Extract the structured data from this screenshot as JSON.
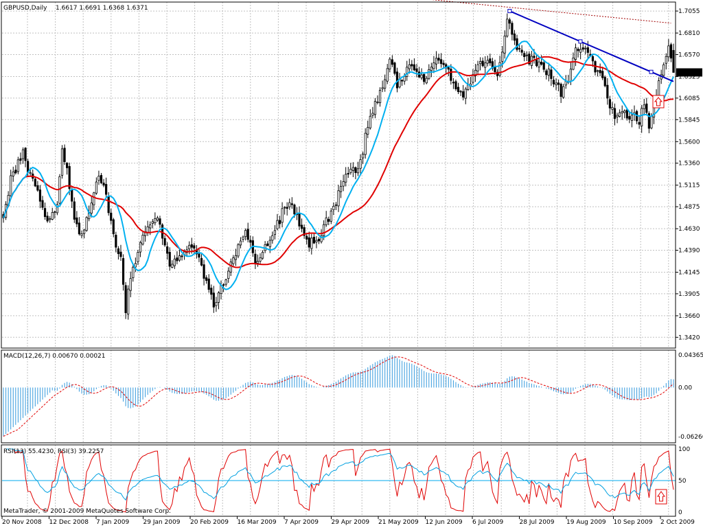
{
  "header": {
    "symbol_label": "GBPUSD,Daily",
    "ohlc": "1.6617 1.6691 1.6368 1.6371"
  },
  "colors": {
    "background": "#ffffff",
    "grid": "#c0c0c0",
    "candle": "#000000",
    "ma_fast": "#00b0f0",
    "ma_slow": "#e00000",
    "ma_long": "#a00000",
    "trendline": "#0000c0",
    "macd_hist": "#3399dd",
    "macd_signal": "#e00000",
    "rsi13": "#00a0e0",
    "rsi3": "#e00000",
    "level": "#00aaee",
    "arrow": "#e00000",
    "last_price_bg": "#000000"
  },
  "chart_data": [
    {
      "type": "candlestick",
      "title": "GBPUSD,Daily",
      "ohlc_header": "1.6617 1.6691 1.6368 1.6371",
      "ylim": [
        1.33,
        1.7155
      ],
      "y_ticks": [
        "1.7055",
        "1.6810",
        "1.6570",
        "1.6325",
        "1.6085",
        "1.5845",
        "1.5600",
        "1.5360",
        "1.5115",
        "1.4875",
        "1.4630",
        "1.4390",
        "1.4145",
        "1.3905",
        "1.3660",
        "1.3420"
      ],
      "last_price": "1.6371",
      "x_ticks": [
        "20 Nov 2008",
        "12 Dec 2008",
        "7 Jan 2009",
        "29 Jan 2009",
        "20 Feb 2009",
        "16 Mar 2009",
        "7 Apr 2009",
        "29 Apr 2009",
        "21 May 2009",
        "12 Jun 2009",
        "6 Jul 2009",
        "28 Jul 2009",
        "19 Aug 2009",
        "10 Sep 2009",
        "2 Oct 2009"
      ],
      "close_anchors": [
        [
          0,
          1.475
        ],
        [
          3,
          1.52
        ],
        [
          8,
          1.545
        ],
        [
          14,
          1.505
        ],
        [
          18,
          1.47
        ],
        [
          22,
          1.49
        ],
        [
          24,
          1.555
        ],
        [
          26,
          1.525
        ],
        [
          28,
          1.49
        ],
        [
          31,
          1.455
        ],
        [
          34,
          1.47
        ],
        [
          36,
          1.49
        ],
        [
          39,
          1.525
        ],
        [
          41,
          1.51
        ],
        [
          45,
          1.455
        ],
        [
          48,
          1.43
        ],
        [
          50,
          1.375
        ],
        [
          52,
          1.41
        ],
        [
          55,
          1.44
        ],
        [
          58,
          1.455
        ],
        [
          62,
          1.48
        ],
        [
          65,
          1.455
        ],
        [
          68,
          1.42
        ],
        [
          72,
          1.43
        ],
        [
          75,
          1.445
        ],
        [
          80,
          1.43
        ],
        [
          83,
          1.405
        ],
        [
          86,
          1.375
        ],
        [
          89,
          1.4
        ],
        [
          93,
          1.42
        ],
        [
          96,
          1.445
        ],
        [
          99,
          1.46
        ],
        [
          103,
          1.425
        ],
        [
          106,
          1.44
        ],
        [
          110,
          1.455
        ],
        [
          114,
          1.48
        ],
        [
          118,
          1.495
        ],
        [
          121,
          1.465
        ],
        [
          124,
          1.45
        ],
        [
          127,
          1.445
        ],
        [
          130,
          1.46
        ],
        [
          134,
          1.48
        ],
        [
          138,
          1.51
        ],
        [
          142,
          1.53
        ],
        [
          145,
          1.525
        ],
        [
          148,
          1.565
        ],
        [
          150,
          1.585
        ],
        [
          152,
          1.6
        ],
        [
          155,
          1.625
        ],
        [
          158,
          1.655
        ],
        [
          161,
          1.62
        ],
        [
          164,
          1.635
        ],
        [
          168,
          1.645
        ],
        [
          172,
          1.625
        ],
        [
          176,
          1.65
        ],
        [
          179,
          1.645
        ],
        [
          182,
          1.635
        ],
        [
          185,
          1.62
        ],
        [
          187,
          1.61
        ],
        [
          190,
          1.62
        ],
        [
          193,
          1.64
        ],
        [
          196,
          1.65
        ],
        [
          199,
          1.65
        ],
        [
          202,
          1.63
        ],
        [
          204,
          1.66
        ],
        [
          206,
          1.7
        ],
        [
          208,
          1.68
        ],
        [
          210,
          1.66
        ],
        [
          213,
          1.655
        ],
        [
          216,
          1.65
        ],
        [
          219,
          1.645
        ],
        [
          222,
          1.64
        ],
        [
          225,
          1.63
        ],
        [
          228,
          1.615
        ],
        [
          231,
          1.63
        ],
        [
          234,
          1.66
        ],
        [
          237,
          1.665
        ],
        [
          240,
          1.65
        ],
        [
          243,
          1.64
        ],
        [
          246,
          1.62
        ],
        [
          248,
          1.6
        ],
        [
          251,
          1.585
        ],
        [
          254,
          1.59
        ],
        [
          257,
          1.59
        ],
        [
          260,
          1.585
        ],
        [
          262,
          1.6
        ],
        [
          264,
          1.575
        ],
        [
          266,
          1.6
        ],
        [
          268,
          1.63
        ],
        [
          270,
          1.645
        ],
        [
          272,
          1.665
        ],
        [
          274,
          1.637
        ]
      ],
      "ma_fast": {
        "period": 10,
        "name": ""
      },
      "ma_slow": {
        "period": 30,
        "name": ""
      },
      "ma_long": [
        [
          142,
          1.727
        ],
        [
          273,
          1.692
        ]
      ],
      "trendline": [
        [
          207,
          1.7055
        ],
        [
          274,
          1.627
        ]
      ]
    },
    {
      "type": "bar",
      "title": "MACD(12,26,7) 0.00670 0.00021",
      "ylim": [
        -0.068,
        0.046
      ],
      "y_ticks": [
        "0.04365",
        "0.00",
        "-0.06266"
      ],
      "series": [
        {
          "name": "MACD",
          "role": "histogram"
        },
        {
          "name": "Signal",
          "role": "line"
        }
      ]
    },
    {
      "type": "line",
      "title": "RSI(13) 55.4230, RSI(3) 39.2257",
      "ylim": [
        0,
        100
      ],
      "y_ticks": [
        "100",
        "50",
        "0"
      ],
      "level": 50,
      "series": [
        {
          "name": "RSI(13)",
          "period": 13
        },
        {
          "name": "RSI(3)",
          "period": 3
        }
      ]
    }
  ],
  "footer": {
    "copyright": "MetaTrader, © 2001-2009 MetaQuotes Software Corp."
  }
}
